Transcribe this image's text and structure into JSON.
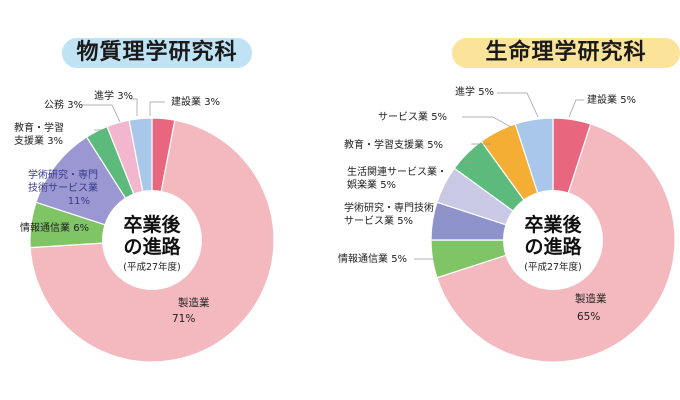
{
  "chart_data": [
    {
      "type": "pie",
      "title": "物質理学研究科",
      "center_title_line1": "卒業後",
      "center_title_line2": "の進路",
      "center_subtitle": "(平成27年度)",
      "slices": [
        {
          "label": "建設業",
          "value": 3,
          "value_label": "3%",
          "color": "#e8667e"
        },
        {
          "label": "製造業",
          "value": 71,
          "value_label": "71%",
          "color": "#f4b8bf"
        },
        {
          "label": "情報通信業",
          "value": 6,
          "value_label": "6%",
          "color": "#7fc565"
        },
        {
          "label": "学術研究・専門技術サービス業",
          "label_line1": "学術研究・専門",
          "label_line2": "技術サービス業",
          "value": 11,
          "value_label": "11%",
          "color": "#9b97d2"
        },
        {
          "label": "教育・学習支援業",
          "label_line1": "教育・学習",
          "label_line2": "支援業",
          "value": 3,
          "value_label": "3%",
          "color": "#5dba7d"
        },
        {
          "label": "公務",
          "value": 3,
          "value_label": "3%",
          "color": "#f3b6cf"
        },
        {
          "label": "進学",
          "value": 3,
          "value_label": "3%",
          "color": "#a9c7ea"
        }
      ]
    },
    {
      "type": "pie",
      "title": "生命理学研究科",
      "center_title_line1": "卒業後",
      "center_title_line2": "の進路",
      "center_subtitle": "(平成27年度)",
      "slices": [
        {
          "label": "建設業",
          "value": 5,
          "value_label": "5%",
          "color": "#e8667e"
        },
        {
          "label": "製造業",
          "value": 65,
          "value_label": "65%",
          "color": "#f4b8bf"
        },
        {
          "label": "情報通信業",
          "value": 5,
          "value_label": "5%",
          "color": "#7fc565"
        },
        {
          "label": "学術研究・専門技術サービス業",
          "label_line1": "学術研究・専門技術",
          "label_line2": "サービス業",
          "value": 5,
          "value_label": "5%",
          "color": "#8e93cc"
        },
        {
          "label": "生活関連サービス業・娯楽業",
          "label_line1": "生活関連サービス業・",
          "label_line2": "娯楽業",
          "value": 5,
          "value_label": "5%",
          "color": "#c9c9e6"
        },
        {
          "label": "教育・学習支援業",
          "value": 5,
          "value_label": "5%",
          "color": "#5dba7d"
        },
        {
          "label": "サービス業",
          "value": 5,
          "value_label": "5%",
          "color": "#f5ae34"
        },
        {
          "label": "進学",
          "value": 5,
          "value_label": "5%",
          "color": "#a9c7ea"
        }
      ]
    }
  ]
}
